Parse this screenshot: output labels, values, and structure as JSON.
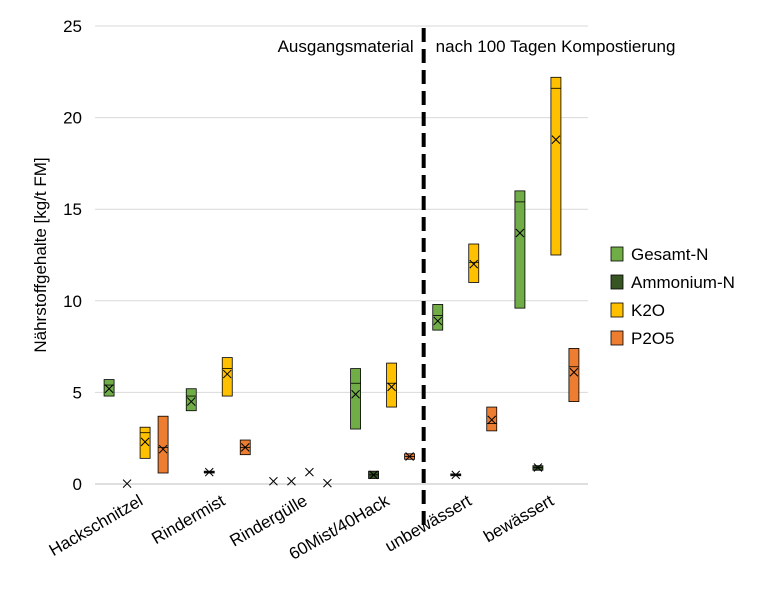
{
  "chart_data": {
    "type": "box",
    "title": "",
    "ylabel": "Nährstoffgehalte [kg/t FM]",
    "xlabel": "",
    "ylim": [
      0,
      25
    ],
    "yticks": [
      0,
      5,
      10,
      15,
      20,
      25
    ],
    "grid": true,
    "legend_position": "right",
    "categories": [
      "Hackschnitzel",
      "Rindermist",
      "Rindergülle",
      "60Mist/40Hack",
      "unbewässert",
      "bewässert"
    ],
    "annotations": {
      "left": "Ausgangsmaterial",
      "right": "nach 100 Tagen Kompostierung",
      "divider_after_category": 3
    },
    "series": [
      {
        "name": "Gesamt-N",
        "color": "#70AD47",
        "boxes": [
          {
            "min": 4.8,
            "q1": 5.0,
            "median": 5.4,
            "mean": 5.2,
            "q3": 5.7,
            "max": 5.7
          },
          {
            "min": 4.0,
            "q1": 4.2,
            "median": 4.8,
            "mean": 4.5,
            "q3": 5.2,
            "max": 5.2
          },
          {
            "min": 0.15,
            "q1": 0.15,
            "median": 0.15,
            "mean": 0.15,
            "q3": 0.15,
            "max": 0.15
          },
          {
            "min": 3.0,
            "q1": 3.0,
            "median": 5.5,
            "mean": 4.9,
            "q3": 6.3,
            "max": 6.3
          },
          {
            "min": 8.4,
            "q1": 8.6,
            "median": 9.2,
            "mean": 8.9,
            "q3": 9.8,
            "max": 9.8
          },
          {
            "min": 9.6,
            "q1": 9.6,
            "median": 15.4,
            "mean": 13.7,
            "q3": 16.0,
            "max": 16.0
          }
        ]
      },
      {
        "name": "Ammonium-N",
        "color": "#375623",
        "boxes": [
          {
            "min": 0.02,
            "q1": 0.02,
            "median": 0.02,
            "mean": 0.02,
            "q3": 0.02,
            "max": 0.02
          },
          {
            "min": 0.6,
            "q1": 0.6,
            "median": 0.65,
            "mean": 0.65,
            "q3": 0.7,
            "max": 0.7
          },
          {
            "min": 0.15,
            "q1": 0.15,
            "median": 0.15,
            "mean": 0.15,
            "q3": 0.15,
            "max": 0.15
          },
          {
            "min": 0.3,
            "q1": 0.3,
            "median": 0.5,
            "mean": 0.5,
            "q3": 0.7,
            "max": 0.7
          },
          {
            "min": 0.45,
            "q1": 0.45,
            "median": 0.5,
            "mean": 0.5,
            "q3": 0.55,
            "max": 0.55
          },
          {
            "min": 0.75,
            "q1": 0.75,
            "median": 0.9,
            "mean": 0.9,
            "q3": 1.0,
            "max": 1.0
          }
        ]
      },
      {
        "name": "K2O",
        "color": "#FFC000",
        "boxes": [
          {
            "min": 1.4,
            "q1": 1.4,
            "median": 2.8,
            "mean": 2.3,
            "q3": 3.1,
            "max": 3.1
          },
          {
            "min": 4.8,
            "q1": 4.8,
            "median": 6.3,
            "mean": 6.0,
            "q3": 6.9,
            "max": 6.9
          },
          {
            "min": 0.65,
            "q1": 0.65,
            "median": 0.65,
            "mean": 0.65,
            "q3": 0.65,
            "max": 0.65
          },
          {
            "min": 4.2,
            "q1": 4.2,
            "median": 5.5,
            "mean": 5.3,
            "q3": 6.6,
            "max": 6.6
          },
          {
            "min": 11.0,
            "q1": 11.0,
            "median": 12.1,
            "mean": 12.0,
            "q3": 13.1,
            "max": 13.1
          },
          {
            "min": 12.5,
            "q1": 12.5,
            "median": 21.6,
            "mean": 18.8,
            "q3": 22.2,
            "max": 22.2
          }
        ]
      },
      {
        "name": "P2O5",
        "color": "#ED7D31",
        "boxes": [
          {
            "min": 0.6,
            "q1": 0.6,
            "median": 2.0,
            "mean": 1.9,
            "q3": 3.7,
            "max": 3.7
          },
          {
            "min": 1.6,
            "q1": 1.6,
            "median": 2.0,
            "mean": 2.0,
            "q3": 2.4,
            "max": 2.4
          },
          {
            "min": 0.05,
            "q1": 0.05,
            "median": 0.05,
            "mean": 0.05,
            "q3": 0.05,
            "max": 0.05
          },
          {
            "min": 1.35,
            "q1": 1.35,
            "median": 1.5,
            "mean": 1.5,
            "q3": 1.65,
            "max": 1.65
          },
          {
            "min": 2.9,
            "q1": 2.9,
            "median": 3.3,
            "mean": 3.5,
            "q3": 4.2,
            "max": 4.2
          },
          {
            "min": 4.5,
            "q1": 4.5,
            "median": 6.4,
            "mean": 6.1,
            "q3": 7.4,
            "max": 7.4
          }
        ]
      }
    ]
  }
}
